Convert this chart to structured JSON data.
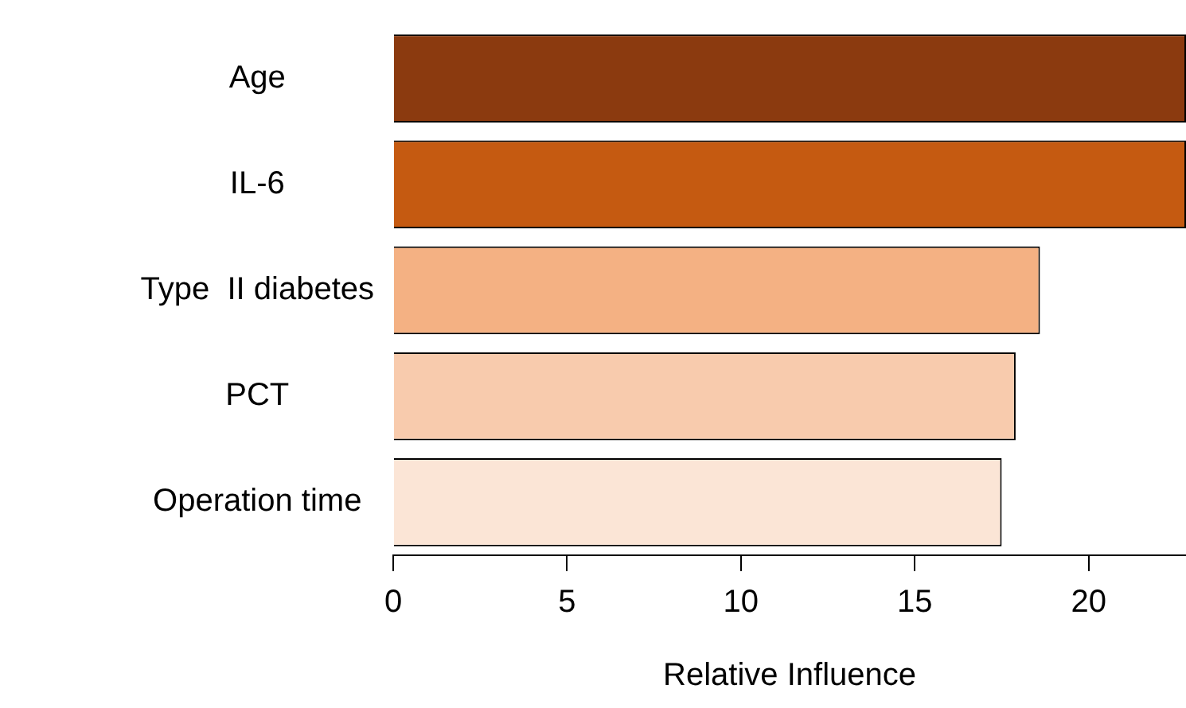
{
  "chart_data": {
    "type": "bar",
    "orientation": "horizontal",
    "xlabel": "Relative Influence",
    "categories": [
      "Age",
      "IL-6",
      "Type  II diabetes",
      "PCT",
      "Operation time"
    ],
    "values": [
      22.8,
      22.8,
      18.6,
      17.9,
      17.5
    ],
    "colors": [
      "#8b3a0f",
      "#c55a11",
      "#f4b183",
      "#f8cbad",
      "#fbe5d6"
    ],
    "xlim": [
      0,
      22.8
    ],
    "xticks": [
      0,
      5,
      10,
      15,
      20
    ],
    "grid": false,
    "legend": false
  }
}
